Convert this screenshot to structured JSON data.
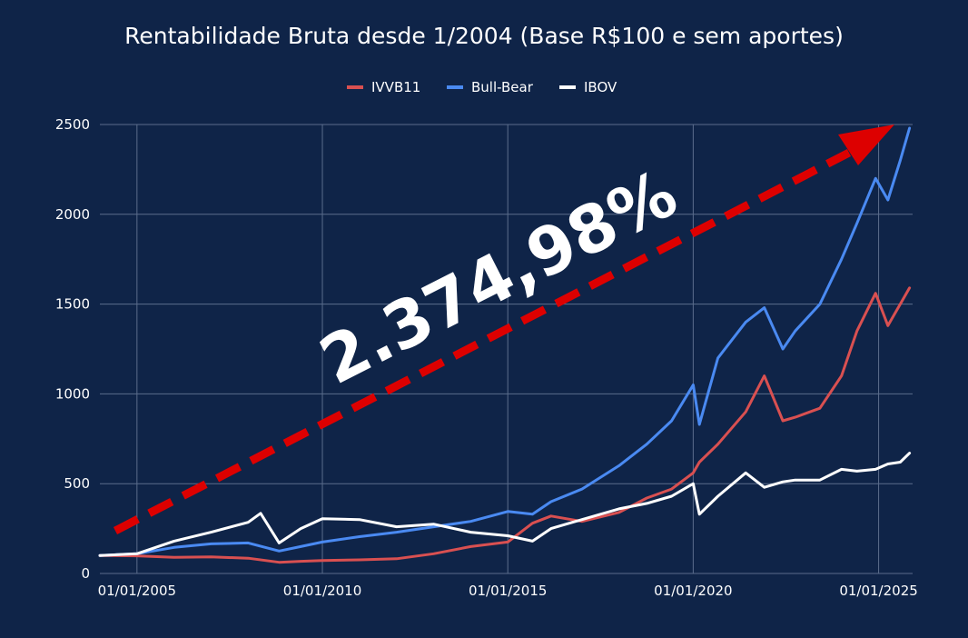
{
  "chart_data": {
    "type": "line",
    "title": "Rentabilidade Bruta desde 1/2004 (Base R$100 e sem aportes)",
    "xlabel": "",
    "ylabel": "",
    "grid": true,
    "legend_position": "top",
    "ylim": [
      0,
      2500
    ],
    "xlim": [
      "2004-01",
      "2025-12"
    ],
    "yticks": [
      "0",
      "500",
      "1000",
      "1500",
      "2000",
      "2500"
    ],
    "xticks": [
      {
        "date": "2005-01",
        "label": "01/01/2005"
      },
      {
        "date": "2010-01",
        "label": "01/01/2010"
      },
      {
        "date": "2015-01",
        "label": "01/01/2015"
      },
      {
        "date": "2020-01",
        "label": "01/01/2020"
      },
      {
        "date": "2025-01",
        "label": "01/01/2025"
      }
    ],
    "annotation": {
      "text": "2.374,98%",
      "arrow_color": "#dd0000"
    },
    "series": [
      {
        "name": "IVVB11",
        "color": "#d95051",
        "points": [
          [
            "2004-01",
            100
          ],
          [
            "2005-01",
            98
          ],
          [
            "2006-01",
            90
          ],
          [
            "2007-01",
            92
          ],
          [
            "2008-01",
            85
          ],
          [
            "2008-11",
            62
          ],
          [
            "2009-06",
            68
          ],
          [
            "2010-01",
            72
          ],
          [
            "2011-01",
            76
          ],
          [
            "2012-01",
            82
          ],
          [
            "2013-01",
            110
          ],
          [
            "2014-01",
            150
          ],
          [
            "2015-01",
            175
          ],
          [
            "2015-09",
            280
          ],
          [
            "2016-03",
            320
          ],
          [
            "2017-01",
            290
          ],
          [
            "2018-01",
            340
          ],
          [
            "2018-10",
            420
          ],
          [
            "2019-06",
            470
          ],
          [
            "2020-01",
            560
          ],
          [
            "2020-03",
            620
          ],
          [
            "2020-09",
            720
          ],
          [
            "2021-06",
            900
          ],
          [
            "2021-12",
            1100
          ],
          [
            "2022-06",
            850
          ],
          [
            "2022-10",
            870
          ],
          [
            "2023-06",
            920
          ],
          [
            "2024-01",
            1100
          ],
          [
            "2024-06",
            1350
          ],
          [
            "2024-12",
            1560
          ],
          [
            "2025-04",
            1380
          ],
          [
            "2025-08",
            1500
          ],
          [
            "2025-11",
            1590
          ]
        ]
      },
      {
        "name": "Bull-Bear",
        "color": "#4a8af2",
        "points": [
          [
            "2004-01",
            100
          ],
          [
            "2005-01",
            110
          ],
          [
            "2006-01",
            145
          ],
          [
            "2007-01",
            165
          ],
          [
            "2008-01",
            170
          ],
          [
            "2008-11",
            125
          ],
          [
            "2009-06",
            150
          ],
          [
            "2010-01",
            175
          ],
          [
            "2011-01",
            205
          ],
          [
            "2012-01",
            230
          ],
          [
            "2013-01",
            260
          ],
          [
            "2014-01",
            290
          ],
          [
            "2015-01",
            345
          ],
          [
            "2015-09",
            330
          ],
          [
            "2016-03",
            400
          ],
          [
            "2017-01",
            470
          ],
          [
            "2018-01",
            600
          ],
          [
            "2018-10",
            720
          ],
          [
            "2019-06",
            850
          ],
          [
            "2020-01",
            1050
          ],
          [
            "2020-03",
            830
          ],
          [
            "2020-09",
            1200
          ],
          [
            "2021-06",
            1400
          ],
          [
            "2021-12",
            1480
          ],
          [
            "2022-06",
            1250
          ],
          [
            "2022-10",
            1350
          ],
          [
            "2023-06",
            1500
          ],
          [
            "2024-01",
            1750
          ],
          [
            "2024-06",
            1950
          ],
          [
            "2024-12",
            2200
          ],
          [
            "2025-04",
            2080
          ],
          [
            "2025-08",
            2300
          ],
          [
            "2025-11",
            2480
          ]
        ]
      },
      {
        "name": "IBOV",
        "color": "#ffffff",
        "points": [
          [
            "2004-01",
            100
          ],
          [
            "2005-01",
            110
          ],
          [
            "2006-01",
            180
          ],
          [
            "2007-01",
            230
          ],
          [
            "2008-01",
            285
          ],
          [
            "2008-05",
            335
          ],
          [
            "2008-11",
            170
          ],
          [
            "2009-06",
            250
          ],
          [
            "2010-01",
            305
          ],
          [
            "2011-01",
            300
          ],
          [
            "2012-01",
            260
          ],
          [
            "2013-01",
            275
          ],
          [
            "2014-01",
            230
          ],
          [
            "2015-01",
            210
          ],
          [
            "2015-09",
            180
          ],
          [
            "2016-03",
            250
          ],
          [
            "2017-01",
            300
          ],
          [
            "2018-01",
            360
          ],
          [
            "2018-10",
            390
          ],
          [
            "2019-06",
            430
          ],
          [
            "2020-01",
            500
          ],
          [
            "2020-03",
            330
          ],
          [
            "2020-09",
            430
          ],
          [
            "2021-06",
            560
          ],
          [
            "2021-12",
            480
          ],
          [
            "2022-06",
            510
          ],
          [
            "2022-10",
            520
          ],
          [
            "2023-06",
            520
          ],
          [
            "2024-01",
            580
          ],
          [
            "2024-06",
            570
          ],
          [
            "2024-12",
            580
          ],
          [
            "2025-04",
            610
          ],
          [
            "2025-08",
            620
          ],
          [
            "2025-11",
            670
          ]
        ]
      }
    ]
  }
}
